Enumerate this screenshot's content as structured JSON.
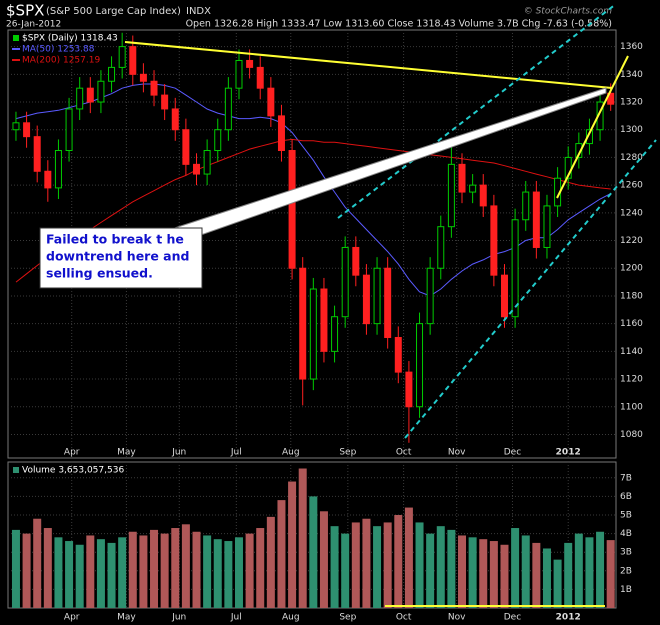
{
  "header": {
    "symbol": "$SPX",
    "name": "(S&P 500 Large Cap Index)",
    "exchange": "INDX",
    "date": "26-Jan-2012",
    "quote": "Open 1326.28 High 1333.47 Low 1313.60 Close 1318.43 Volume 3.7B Chg -7.63 (-0.58%)",
    "credit": "© StockCharts.com"
  },
  "annotation": [
    "Failed to break t he",
    "downtrend here and",
    "selling ensued."
  ],
  "chart_data": [
    {
      "type": "candlestick",
      "name": "$SPX (Daily) 1318.43",
      "up_color": "#00cc00",
      "down_color": "#ff2020",
      "x": [
        3,
        7,
        11,
        15,
        19,
        23,
        27,
        31,
        35,
        39,
        43,
        47,
        51,
        55,
        59,
        63,
        67,
        71,
        75,
        79,
        83,
        87,
        91,
        95,
        99,
        103,
        107,
        111,
        115,
        119,
        123,
        127,
        131,
        135,
        139,
        143,
        147,
        151,
        155,
        159,
        163,
        167,
        171,
        175,
        179,
        183,
        187,
        191,
        195,
        199,
        203,
        207,
        211,
        215,
        219,
        223,
        227
      ],
      "open": [
        1300,
        1305,
        1295,
        1270,
        1258,
        1285,
        1315,
        1330,
        1320,
        1335,
        1345,
        1360,
        1340,
        1335,
        1325,
        1315,
        1300,
        1275,
        1268,
        1285,
        1300,
        1330,
        1350,
        1345,
        1330,
        1310,
        1285,
        1200,
        1120,
        1185,
        1140,
        1165,
        1215,
        1195,
        1160,
        1200,
        1150,
        1125,
        1100,
        1160,
        1200,
        1230,
        1275,
        1255,
        1260,
        1245,
        1195,
        1165,
        1235,
        1255,
        1215,
        1245,
        1265,
        1280,
        1290,
        1300,
        1326.28
      ],
      "high": [
        1313,
        1313,
        1303,
        1278,
        1293,
        1323,
        1338,
        1338,
        1343,
        1353,
        1370,
        1368,
        1348,
        1343,
        1333,
        1323,
        1308,
        1283,
        1293,
        1308,
        1338,
        1358,
        1358,
        1353,
        1338,
        1318,
        1293,
        1208,
        1193,
        1193,
        1173,
        1223,
        1223,
        1203,
        1208,
        1208,
        1158,
        1133,
        1168,
        1208,
        1238,
        1292,
        1283,
        1268,
        1268,
        1253,
        1203,
        1243,
        1263,
        1263,
        1253,
        1273,
        1288,
        1298,
        1308,
        1328,
        1333.47
      ],
      "low": [
        1292,
        1287,
        1262,
        1248,
        1250,
        1277,
        1307,
        1312,
        1312,
        1327,
        1337,
        1332,
        1327,
        1317,
        1307,
        1292,
        1267,
        1260,
        1260,
        1277,
        1292,
        1322,
        1337,
        1322,
        1302,
        1277,
        1192,
        1101,
        1112,
        1132,
        1132,
        1157,
        1187,
        1152,
        1152,
        1142,
        1117,
        1074,
        1092,
        1152,
        1192,
        1222,
        1247,
        1247,
        1237,
        1187,
        1157,
        1157,
        1227,
        1207,
        1207,
        1237,
        1257,
        1272,
        1282,
        1292,
        1313.6
      ],
      "close": [
        1305,
        1295,
        1270,
        1258,
        1285,
        1315,
        1330,
        1320,
        1335,
        1345,
        1360,
        1340,
        1335,
        1325,
        1315,
        1300,
        1275,
        1268,
        1285,
        1300,
        1330,
        1350,
        1345,
        1330,
        1310,
        1285,
        1200,
        1120,
        1185,
        1140,
        1165,
        1215,
        1195,
        1160,
        1200,
        1150,
        1125,
        1100,
        1160,
        1200,
        1230,
        1275,
        1255,
        1260,
        1245,
        1195,
        1165,
        1235,
        1255,
        1215,
        1245,
        1265,
        1280,
        1290,
        1300,
        1320,
        1318.43
      ],
      "series": [
        {
          "name": "MA(50) 1253.88",
          "color": "#5a5aff",
          "values": [
            1308,
            1310,
            1312,
            1313,
            1314,
            1316,
            1318,
            1320,
            1323,
            1326,
            1330,
            1332,
            1333,
            1333,
            1332,
            1330,
            1325,
            1320,
            1315,
            1312,
            1310,
            1308,
            1308,
            1309,
            1308,
            1305,
            1298,
            1288,
            1278,
            1266,
            1255,
            1244,
            1236,
            1228,
            1220,
            1212,
            1203,
            1192,
            1183,
            1180,
            1185,
            1192,
            1198,
            1203,
            1206,
            1210,
            1212,
            1215,
            1220,
            1222,
            1222,
            1228,
            1235,
            1240,
            1245,
            1250,
            1253.88
          ]
        },
        {
          "name": "MA(200) 1257.19",
          "color": "#dd1111",
          "values": [
            1190,
            1196,
            1202,
            1208,
            1213,
            1218,
            1223,
            1228,
            1233,
            1238,
            1243,
            1248,
            1252,
            1256,
            1260,
            1264,
            1267,
            1271,
            1274,
            1277,
            1280,
            1283,
            1286,
            1288,
            1290,
            1292,
            1293,
            1292,
            1292,
            1291,
            1291,
            1290,
            1289,
            1288,
            1287,
            1286,
            1285,
            1284,
            1283,
            1282,
            1281,
            1280,
            1279,
            1278,
            1277,
            1276,
            1274,
            1272,
            1270,
            1268,
            1266,
            1264,
            1262,
            1260,
            1259,
            1258,
            1257.19
          ]
        }
      ],
      "xlim": [
        0,
        229
      ],
      "xticks": [
        {
          "value": 24,
          "label": "Apr"
        },
        {
          "value": 44.6,
          "label": "May"
        },
        {
          "value": 64.5,
          "label": "Jun"
        },
        {
          "value": 86,
          "label": "Jul"
        },
        {
          "value": 106.5,
          "label": "Aug"
        },
        {
          "value": 128,
          "label": "Sep"
        },
        {
          "value": 149,
          "label": "Oct"
        },
        {
          "value": 169,
          "label": "Nov"
        },
        {
          "value": 190,
          "label": "Dec"
        },
        {
          "value": 211,
          "label": "2012"
        }
      ],
      "ylim": [
        1063,
        1372
      ],
      "yticks": [
        1080,
        1100,
        1120,
        1140,
        1160,
        1180,
        1200,
        1220,
        1240,
        1260,
        1280,
        1300,
        1320,
        1340,
        1360
      ],
      "grid": true
    },
    {
      "type": "bar",
      "name": "Volume 3,653,057,536",
      "up_color": "#2e9070",
      "down_color": "#b05858",
      "x": [
        3,
        7,
        11,
        15,
        19,
        23,
        27,
        31,
        35,
        39,
        43,
        47,
        51,
        55,
        59,
        63,
        67,
        71,
        75,
        79,
        83,
        87,
        91,
        95,
        99,
        103,
        107,
        111,
        115,
        119,
        123,
        127,
        131,
        135,
        139,
        143,
        147,
        151,
        155,
        159,
        163,
        167,
        171,
        175,
        179,
        183,
        187,
        191,
        195,
        199,
        203,
        207,
        211,
        215,
        219,
        223,
        227
      ],
      "values": [
        4.2,
        4.0,
        4.8,
        4.3,
        3.8,
        3.6,
        3.4,
        3.9,
        3.7,
        3.5,
        3.8,
        4.1,
        3.9,
        4.2,
        4.0,
        4.3,
        4.5,
        4.1,
        3.9,
        3.7,
        3.6,
        3.8,
        4.0,
        4.3,
        4.9,
        5.8,
        6.8,
        7.5,
        6.0,
        5.2,
        4.4,
        4.0,
        4.6,
        4.8,
        4.4,
        4.6,
        5.0,
        5.4,
        4.6,
        4.0,
        4.4,
        4.2,
        3.9,
        3.8,
        3.7,
        3.6,
        3.4,
        4.3,
        3.9,
        3.5,
        3.2,
        2.6,
        3.5,
        4.0,
        3.8,
        4.1,
        3.65
      ],
      "xlim": [
        0,
        229
      ],
      "xticks": [
        {
          "value": 24,
          "label": "Apr"
        },
        {
          "value": 44.6,
          "label": "May"
        },
        {
          "value": 64.5,
          "label": "Jun"
        },
        {
          "value": 86,
          "label": "Jul"
        },
        {
          "value": 106.5,
          "label": "Aug"
        },
        {
          "value": 128,
          "label": "Sep"
        },
        {
          "value": 149,
          "label": "Oct"
        },
        {
          "value": 169,
          "label": "Nov"
        },
        {
          "value": 190,
          "label": "Dec"
        },
        {
          "value": 211,
          "label": "2012"
        }
      ],
      "ylim": [
        0,
        7.85
      ],
      "yticks": [
        {
          "value": 1,
          "label": "1B"
        },
        {
          "value": 2,
          "label": "2B"
        },
        {
          "value": 3,
          "label": "3B"
        },
        {
          "value": 4,
          "label": "4B"
        },
        {
          "value": 5,
          "label": "5B"
        },
        {
          "value": 6,
          "label": "6B"
        },
        {
          "value": 7,
          "label": "7B"
        }
      ],
      "grid": true
    }
  ]
}
